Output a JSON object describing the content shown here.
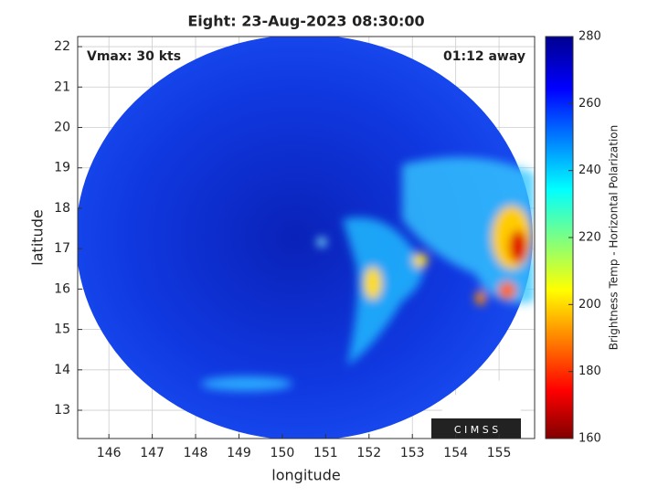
{
  "chart_data": {
    "type": "map",
    "title": "Eight: 23-Aug-2023 08:30:00",
    "annotations": [
      "Vmax: 30 kts",
      "01:12 away"
    ],
    "xlabel": "longitude",
    "ylabel": "latitude",
    "xlim": [
      145.28,
      155.82
    ],
    "xticks": [
      146,
      147,
      148,
      149,
      150,
      151,
      152,
      153,
      154,
      155
    ],
    "ylim": [
      12.3,
      22.25
    ],
    "yticks": [
      13,
      14,
      15,
      16,
      17,
      18,
      19,
      20,
      21,
      22
    ],
    "grid": true,
    "colorbar": {
      "label": "Brightness Temp - Horizontal Polarization",
      "lim": [
        160,
        280
      ],
      "ticks": [
        160,
        180,
        200,
        220,
        240,
        260,
        280
      ]
    },
    "logo": "C I M S S"
  }
}
